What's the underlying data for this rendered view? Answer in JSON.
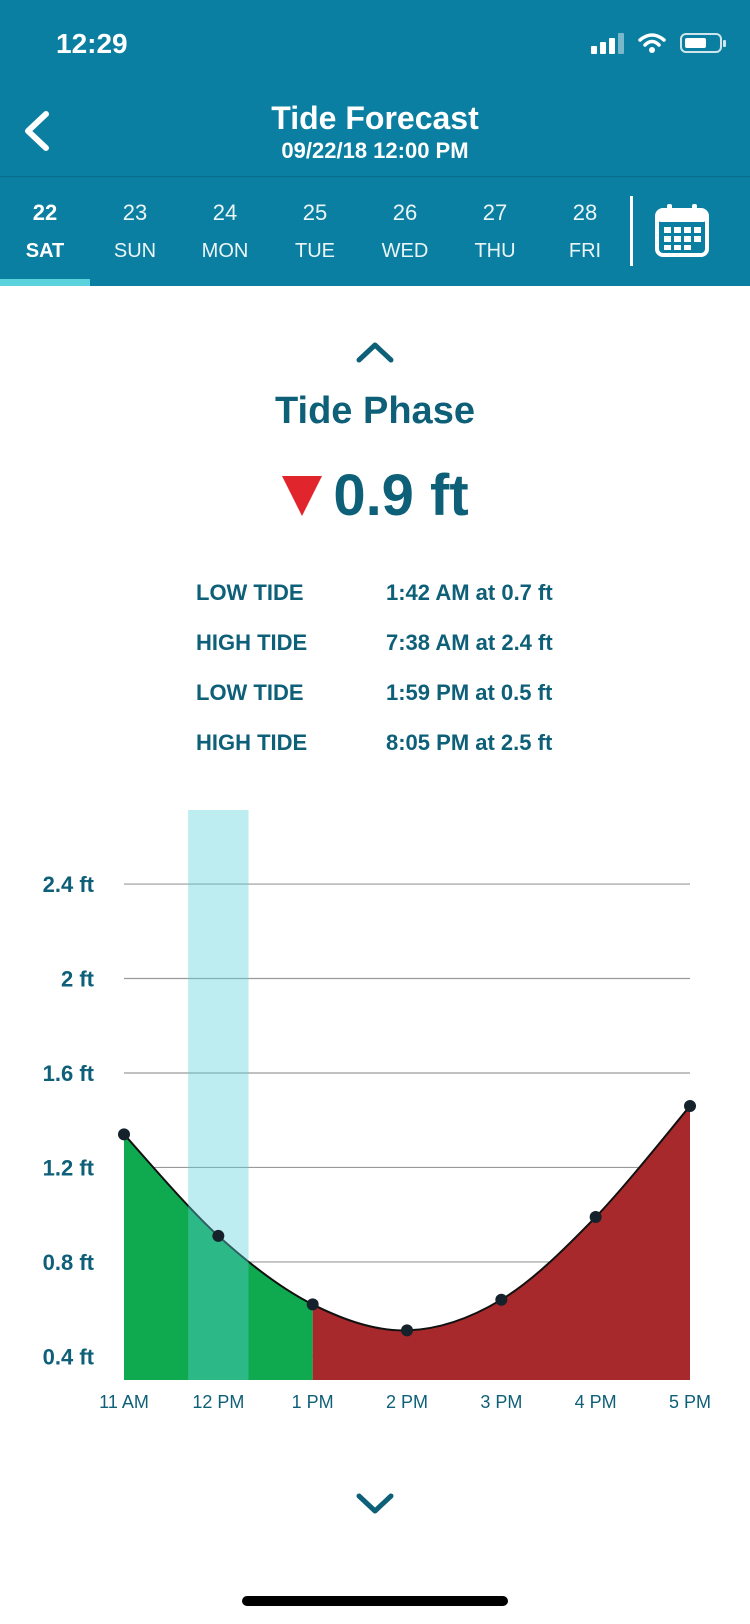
{
  "status": {
    "time": "12:29"
  },
  "nav": {
    "title": "Tide Forecast",
    "subtitle": "09/22/18 12:00 PM"
  },
  "days": [
    {
      "num": "22",
      "dow": "SAT"
    },
    {
      "num": "23",
      "dow": "SUN"
    },
    {
      "num": "24",
      "dow": "MON"
    },
    {
      "num": "25",
      "dow": "TUE"
    },
    {
      "num": "26",
      "dow": "WED"
    },
    {
      "num": "27",
      "dow": "THU"
    },
    {
      "num": "28",
      "dow": "FRI"
    }
  ],
  "selected_day_index": 0,
  "phase": {
    "title": "Tide Phase",
    "value": "0.9 ft",
    "direction": "falling"
  },
  "tides": [
    {
      "type": "LOW TIDE",
      "detail": "1:42 AM at 0.7 ft"
    },
    {
      "type": "HIGH TIDE",
      "detail": "7:38 AM at 2.4 ft"
    },
    {
      "type": "LOW TIDE",
      "detail": "1:59 PM at 0.5 ft"
    },
    {
      "type": "HIGH TIDE",
      "detail": "8:05 PM at 2.5 ft"
    }
  ],
  "colors": {
    "header": "#0b7fa1",
    "text": "#0e5f78",
    "falling": "#0fa94f",
    "rising": "#a8292b",
    "highlight": "#5ad3dd",
    "arrow_down": "#e0262c"
  },
  "icons": {
    "back": "chevron-left-icon",
    "calendar": "calendar-icon",
    "up": "chevron-up-icon",
    "down": "chevron-down-icon"
  },
  "chart_data": {
    "type": "area",
    "categories": [
      "11 AM",
      "12 PM",
      "1 PM",
      "2 PM",
      "3 PM",
      "4 PM",
      "5 PM"
    ],
    "values": [
      1.34,
      0.91,
      0.62,
      0.51,
      0.64,
      0.99,
      1.46
    ],
    "y_ticks": [
      {
        "value": 0.4,
        "label": "0.4 ft"
      },
      {
        "value": 0.8,
        "label": "0.8 ft"
      },
      {
        "value": 1.2,
        "label": "1.2 ft"
      },
      {
        "value": 1.6,
        "label": "1.6 ft"
      },
      {
        "value": 2.0,
        "label": "2 ft"
      },
      {
        "value": 2.4,
        "label": "2.4 ft"
      }
    ],
    "ylim": [
      0.3,
      2.65
    ],
    "falling_until_index": 2,
    "highlight_range": [
      0.68,
      1.32
    ],
    "grid": true
  }
}
